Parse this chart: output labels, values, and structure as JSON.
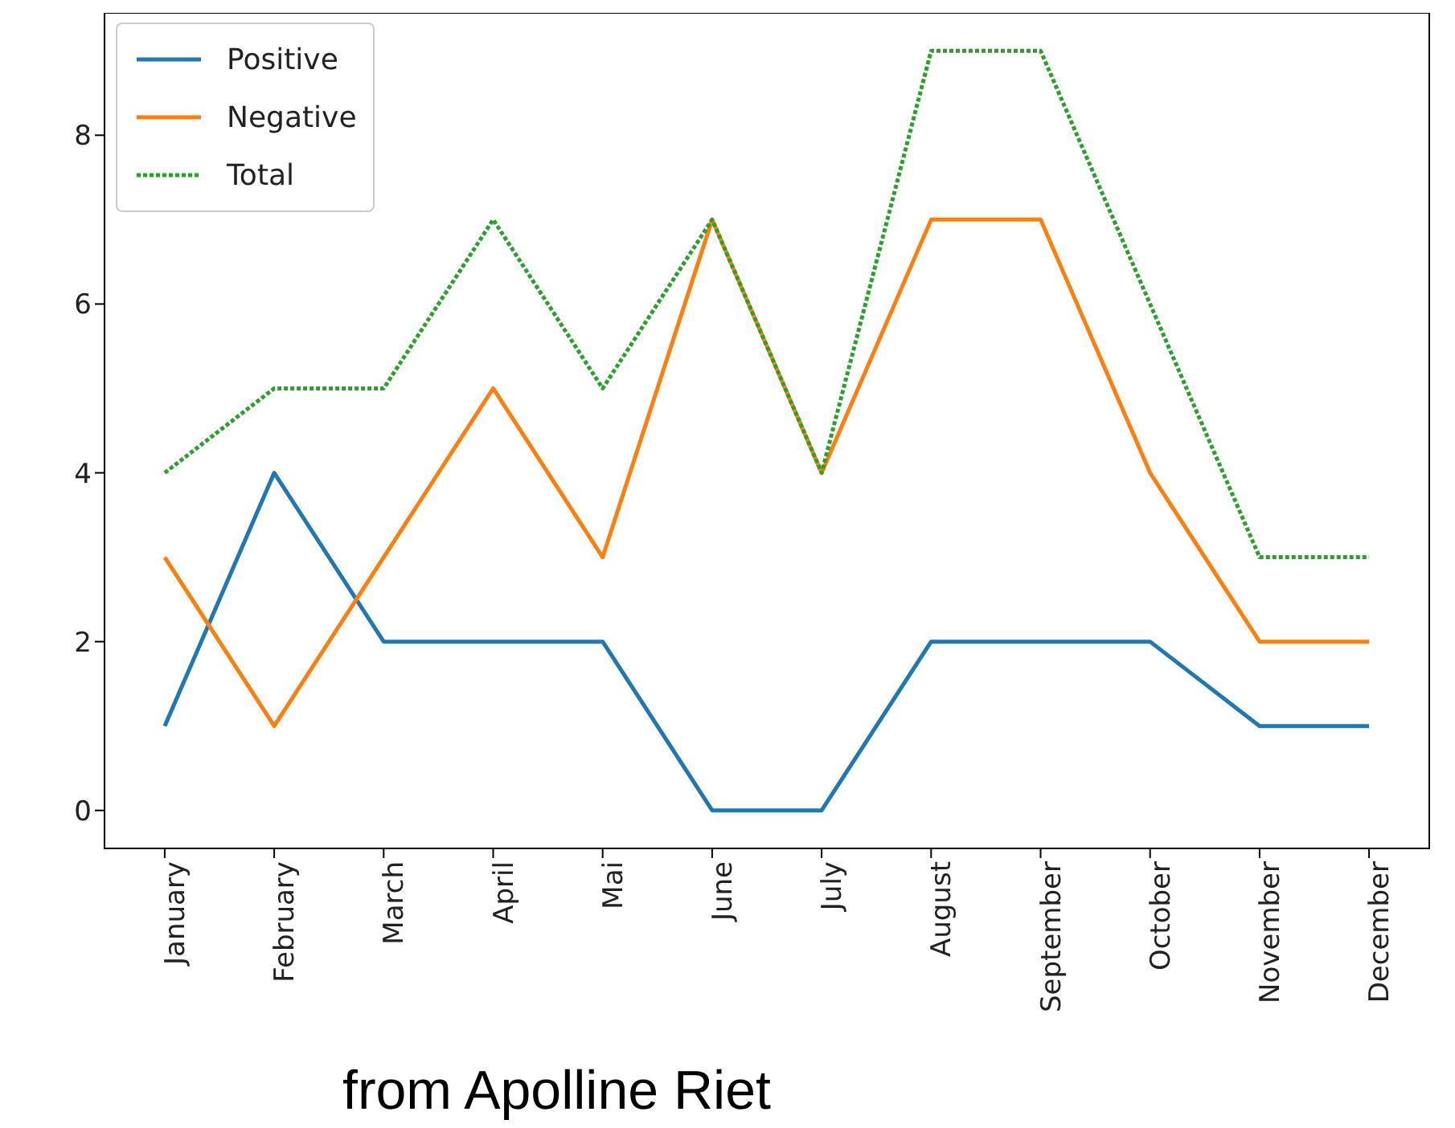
{
  "chart_data": {
    "type": "line",
    "categories": [
      "January",
      "February",
      "March",
      "April",
      "Mai",
      "June",
      "July",
      "August",
      "September",
      "October",
      "November",
      "December"
    ],
    "series": [
      {
        "name": "Positive",
        "color": "#1f77b4",
        "line_style": "solid",
        "values": [
          1,
          4,
          2,
          2,
          2,
          0,
          0,
          2,
          2,
          2,
          1,
          1
        ]
      },
      {
        "name": "Negative",
        "color": "#ff7f0e",
        "line_style": "solid",
        "values": [
          3,
          1,
          3,
          5,
          3,
          7,
          4,
          7,
          7,
          4,
          2,
          2
        ]
      },
      {
        "name": "Total",
        "color": "#2ca02c",
        "line_style": "dotted",
        "values": [
          4,
          5,
          5,
          7,
          5,
          7,
          4,
          9,
          9,
          6,
          3,
          3
        ]
      }
    ],
    "ylim": [
      -0.45,
      9.45
    ],
    "yticks": [
      0,
      2,
      4,
      6,
      8
    ],
    "grid": false,
    "legend": "top left",
    "marker": "none",
    "annotations": [
      "from Apolline Riet"
    ]
  }
}
